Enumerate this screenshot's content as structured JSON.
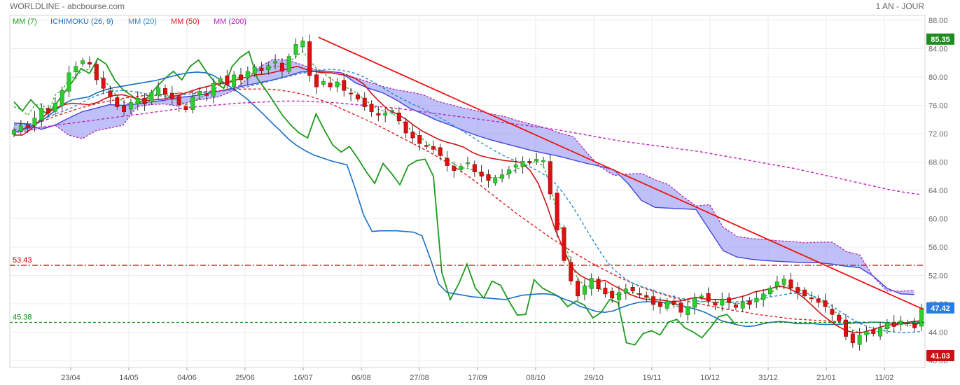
{
  "header": {
    "title": "WORLDLINE - abcbourse.com",
    "period": "1 AN - JOUR"
  },
  "indicators": [
    {
      "label": "MM (7)",
      "color": "#22a022"
    },
    {
      "label": "ICHIMOKU (26, 9)",
      "color": "#1a6fc4"
    },
    {
      "label": "MM (20)",
      "color": "#2a8ad6"
    },
    {
      "label": "MM (50)",
      "color": "#e02020"
    },
    {
      "label": "MM (200)",
      "color": "#c020c0"
    }
  ],
  "chart_data": {
    "type": "candlestick",
    "y_ticks": [
      "88.00",
      "84.00",
      "80.00",
      "76.00",
      "72.00",
      "68.00",
      "64.00",
      "60.00",
      "56.00",
      "52.00",
      "48.00",
      "44.00",
      "40.00"
    ],
    "ylim": [
      40,
      88
    ],
    "x_ticks": [
      "23/04",
      "14/05",
      "04/06",
      "25/06",
      "16/07",
      "06/08",
      "27/08",
      "17/09",
      "08/10",
      "29/10",
      "19/11",
      "10/12",
      "31/12",
      "21/01",
      "11/02"
    ],
    "price_badges": {
      "high": "85.35",
      "current": "47.42",
      "low": "41.03"
    },
    "level_lines": [
      {
        "label": "53.43",
        "value": 53.43,
        "color": "#cc0000",
        "style": "dashdot"
      },
      {
        "label": "45.38",
        "value": 45.38,
        "color": "#008800",
        "style": "dashed"
      }
    ],
    "trendline": {
      "from": [
        0,
        85.6
      ],
      "to": [
        1,
        47.2
      ],
      "color": "#ee1111"
    },
    "series": {
      "close": [
        72.5,
        73.1,
        72.8,
        74.2,
        75.6,
        74.9,
        76.3,
        78.1,
        80.6,
        81.5,
        82.3,
        81.8,
        79.6,
        78.4,
        77.2,
        75.8,
        75.1,
        76.4,
        77.0,
        76.2,
        77.8,
        78.5,
        77.6,
        76.9,
        76.1,
        75.4,
        77.2,
        78.0,
        77.4,
        79.1,
        79.8,
        78.9,
        80.3,
        79.6,
        80.8,
        81.4,
        80.9,
        81.6,
        82.2,
        80.8,
        82.9,
        84.6,
        85.1,
        80.2,
        78.6,
        79.4,
        78.6,
        79.3,
        78.1,
        77.6,
        76.9,
        75.8,
        75.1,
        74.6,
        74.9,
        75.3,
        73.8,
        72.1,
        71.4,
        70.6,
        70.2,
        69.8,
        68.9,
        67.5,
        66.8,
        67.4,
        67.9,
        66.6,
        66.0,
        65.4,
        65.8,
        66.2,
        66.9,
        67.6,
        68.1,
        67.9,
        68.4,
        68.2,
        63.5,
        58.4,
        54.1,
        51.2,
        49.1,
        50.5,
        51.6,
        50.1,
        49.4,
        48.8,
        49.6,
        50.1,
        49.8,
        49.3,
        48.9,
        47.9,
        47.6,
        48.4,
        47.9,
        46.8,
        47.6,
        48.8,
        49.1,
        48.4,
        47.8,
        48.6,
        48.2,
        47.5,
        48.3,
        47.9,
        48.8,
        49.4,
        50.2,
        51.1,
        51.5,
        50.2,
        49.6,
        49.1,
        48.7,
        48.2,
        47.6,
        46.5,
        45.6,
        43.4,
        42.5,
        43.6,
        44.1,
        43.8,
        44.6,
        45.3,
        44.8,
        45.6,
        45.2,
        44.6,
        47.4
      ],
      "mm7": [
        75.8,
        75.4,
        74.6,
        76.0,
        76.2,
        75.1,
        77.5,
        78.2,
        79.6,
        80.2,
        80.9,
        81.1,
        80.4,
        79.6,
        78.6,
        77.2,
        76.4,
        76.2,
        76.5,
        76.7,
        77.2,
        77.6,
        77.5,
        77.1,
        76.6,
        76.1,
        76.5,
        77.1,
        77.5,
        78.1,
        78.9,
        79.2,
        79.8,
        80.0,
        80.4,
        80.8,
        81.0,
        81.2,
        81.6,
        81.4,
        82.1,
        82.9,
        83.6,
        82.4,
        81.2,
        80.6,
        79.8,
        79.2,
        78.7,
        78.2,
        77.6,
        76.8,
        76.1,
        75.4,
        75.1,
        74.9,
        74.2,
        73.2,
        72.3,
        71.6,
        70.8,
        70.0,
        69.3,
        68.4,
        67.7,
        67.2,
        67.1,
        66.8,
        66.3,
        65.9,
        65.7,
        65.9,
        66.4,
        66.9,
        67.4,
        67.8,
        68.1,
        67.4,
        64.8,
        60.8,
        57.0,
        53.8,
        51.5,
        50.6,
        50.4,
        50.2,
        49.8,
        49.4,
        49.3,
        49.5,
        49.6,
        49.3,
        49.0,
        48.5,
        48.2,
        48.0,
        47.8,
        47.5,
        47.5,
        47.9,
        48.3,
        48.4,
        48.2,
        48.3,
        48.2,
        48.0,
        48.1,
        48.0,
        48.4,
        48.9,
        49.5,
        50.2,
        50.6,
        50.4,
        50.1,
        49.7,
        49.2,
        48.6,
        48.0,
        47.2,
        46.4,
        45.2,
        44.3,
        43.9,
        43.8,
        43.9,
        44.2,
        44.6,
        44.9,
        45.1,
        45.0,
        44.8,
        45.6
      ],
      "tenkan": [
        71.8,
        71.8,
        72.6,
        73.8,
        74.9,
        75.6,
        76.1,
        76.3,
        76.2,
        76.1,
        76.4,
        77.0,
        77.4,
        77.5,
        77.2,
        76.9,
        76.7,
        76.8,
        76.9,
        77.2,
        77.5,
        77.9,
        78.3,
        78.6,
        78.9,
        79.1,
        79.3,
        79.7,
        80.0,
        80.3,
        80.4,
        80.6,
        80.9,
        81.2,
        81.5,
        81.1,
        80.8,
        80.6,
        80.6,
        80.4,
        80.2,
        79.8,
        79.0,
        77.6,
        76.4,
        75.3,
        74.8,
        74.1,
        73.2,
        72.4,
        71.8,
        71.2,
        70.8,
        70.5,
        70.1,
        69.4,
        68.9,
        68.6,
        68.4,
        68.2,
        68.1,
        67.9,
        66.8,
        64.9,
        61.9,
        58.5,
        55.7,
        53.1,
        52.0,
        51.4,
        51.1,
        51.3,
        50.6,
        50.0,
        49.3,
        48.9,
        48.6,
        48.6,
        48.5,
        48.3,
        48.4,
        48.7,
        48.9,
        48.7,
        48.6,
        48.6,
        48.6,
        48.9,
        49.2,
        49.7,
        49.9,
        50.2,
        50.5,
        50.2,
        49.6,
        48.7,
        47.6,
        46.5,
        45.6,
        44.8,
        44.2,
        43.9,
        44.0,
        44.3,
        44.7,
        45.0,
        45.1,
        45.3,
        45.5,
        45.6
      ],
      "kijun": [
        72.2,
        72.5,
        73.0,
        73.6,
        74.4,
        75.3,
        76.2,
        76.8,
        77.0,
        77.2,
        77.8,
        78.2,
        78.5,
        78.7,
        78.9,
        79.1,
        79.3,
        79.5,
        79.8,
        80.1,
        80.4,
        80.6,
        80.7,
        80.6,
        80.2,
        79.4,
        78.6,
        77.8,
        76.9,
        75.8,
        74.7,
        73.5,
        72.4,
        71.2,
        70.3,
        69.6,
        69.0,
        68.6,
        68.2,
        67.9,
        67.6,
        64.2,
        60.5,
        58.2,
        58.3,
        58.3,
        58.3,
        58.2,
        58.1,
        57.6,
        54.4,
        50.8,
        49.6,
        49.4,
        49.2,
        49.0,
        48.9,
        48.8,
        48.7,
        48.6,
        48.9,
        49.2,
        49.3,
        49.4,
        49.4,
        49.2,
        48.7,
        48.3,
        47.6,
        47.3,
        46.9,
        46.8,
        47.0,
        47.5,
        47.9,
        48.2,
        48.3,
        48.3,
        48.2,
        48.1,
        47.8,
        47.5,
        47.2,
        46.8,
        46.2,
        45.6,
        45.3,
        45.0,
        44.8,
        44.9,
        45.2,
        45.4,
        45.5,
        45.4,
        45.2,
        45.2,
        45.2,
        45.1,
        45.1,
        45.1,
        45.2,
        45.3,
        45.3,
        45.4,
        45.4,
        45.3,
        45.2,
        45.2,
        45.3,
        45.3
      ],
      "mm20": [
        73.2,
        73.3,
        73.4,
        73.8,
        74.3,
        74.8,
        75.2,
        75.7,
        76.3,
        76.9,
        77.4,
        77.8,
        78.0,
        78.1,
        78.0,
        77.8,
        77.6,
        77.4,
        77.3,
        77.3,
        77.4,
        77.6,
        77.7,
        77.8,
        77.9,
        78.0,
        78.2,
        78.4,
        78.6,
        78.9,
        79.2,
        79.5,
        79.8,
        80.1,
        80.4,
        80.6,
        80.8,
        81.0,
        81.1,
        81.0,
        80.8,
        80.5,
        80.0,
        79.4,
        78.7,
        78.0,
        77.3,
        76.7,
        76.1,
        75.6,
        75.0,
        74.4,
        73.7,
        73.0,
        72.3,
        71.6,
        70.8,
        70.1,
        69.4,
        68.8,
        68.3,
        67.8,
        67.3,
        66.7,
        66.0,
        65.0,
        63.6,
        61.9,
        60.0,
        58.0,
        56.1,
        54.3,
        52.9,
        51.9,
        51.1,
        50.6,
        50.2,
        49.8,
        49.4,
        49.1,
        48.8,
        48.6,
        48.4,
        48.3,
        48.2,
        48.2,
        48.2,
        48.3,
        48.4,
        48.6,
        48.8,
        49.0,
        49.2,
        49.4,
        49.5,
        49.4,
        49.1,
        48.6,
        47.9,
        47.1,
        46.3,
        45.6,
        45.0,
        44.6,
        44.3,
        44.1,
        44.0,
        43.9,
        44.0,
        44.1
      ],
      "mm50": [
        72.2,
        72.8,
        73.4,
        74.0,
        74.6,
        75.1,
        75.6,
        76.0,
        76.4,
        76.7,
        77.0,
        77.2,
        77.4,
        77.5,
        77.6,
        77.7,
        77.8,
        77.9,
        78.0,
        78.1,
        78.2,
        78.3,
        78.3,
        78.3,
        78.2,
        78.0,
        77.7,
        77.3,
        76.8,
        76.2,
        75.5,
        74.8,
        74.1,
        73.4,
        72.6,
        71.8,
        71.0,
        70.2,
        69.4,
        68.5,
        67.6,
        66.6,
        65.5,
        64.3,
        63.1,
        61.9,
        60.7,
        59.6,
        58.5,
        57.4,
        56.4,
        55.4,
        54.5,
        53.6,
        52.8,
        52.0,
        51.3,
        50.6,
        50.0,
        49.5,
        49.0,
        48.6,
        48.2,
        47.9,
        47.6,
        47.3,
        47.0,
        46.8,
        46.5,
        46.3,
        46.1,
        45.9,
        45.8,
        45.7,
        45.6,
        45.5,
        45.4,
        45.4,
        45.4,
        45.4,
        45.3,
        45.3,
        45.2,
        45.2
      ],
      "mm200": [
        72.6,
        72.8,
        73.0,
        73.3,
        73.6,
        73.9,
        74.2,
        74.5,
        74.8,
        75.1,
        75.4,
        75.7,
        75.9,
        76.1,
        76.3,
        76.4,
        76.5,
        76.6,
        76.6,
        76.5,
        76.4,
        76.2,
        76.0,
        75.8,
        75.6,
        75.3,
        75.0,
        74.7,
        74.4,
        74.1,
        73.8,
        73.5,
        73.2,
        72.9,
        72.6,
        72.2,
        71.8,
        71.4,
        71.0,
        70.7,
        70.4,
        70.1,
        69.8,
        69.5,
        69.1,
        68.7,
        68.3,
        67.9,
        67.5,
        67.1,
        66.6,
        66.1,
        65.6,
        65.1,
        64.6,
        64.1,
        63.7,
        63.4
      ],
      "lagging": [
        76.5,
        75.2,
        76.8,
        75.5,
        74.8,
        76.2,
        77.8,
        79.4,
        81.2,
        80.5,
        82.6,
        81.8,
        79.6,
        78.2,
        77.4,
        76.4,
        77.2,
        78.6,
        79.8,
        80.8,
        79.6,
        81.5,
        82.4,
        80.6,
        79.2,
        78.4,
        81.5,
        82.8,
        83.6,
        79.8,
        78.2,
        76.4,
        74.6,
        73.2,
        72.1,
        71.4,
        74.8,
        72.5,
        70.4,
        69.4,
        70.2,
        68.5,
        66.6,
        65.0,
        67.8,
        66.4,
        64.8,
        67.5,
        68.2,
        68.4,
        66.0,
        52.4,
        48.6,
        50.8,
        53.6,
        50.2,
        48.8,
        51.2,
        50.6,
        48.4,
        46.4,
        46.5,
        51.4,
        50.2,
        49.6,
        49.0,
        47.6,
        48.4,
        47.8,
        46.0,
        46.8,
        48.6,
        48.2,
        42.5,
        42.2,
        43.8,
        44.2,
        43.6,
        45.4,
        45.8,
        44.6,
        44.0,
        43.2,
        44.6,
        46.2,
        46.5,
        45.1
      ],
      "cloud_a": [
        73.5,
        73.4,
        72.6,
        73.2,
        74.2,
        75.1,
        75.6,
        76.1,
        76.0,
        76.2,
        76.5,
        76.7,
        77.1,
        77.3,
        77.6,
        78.0,
        78.4,
        78.8,
        79.2,
        79.6,
        80.1,
        80.7,
        80.8,
        80.8,
        80.6,
        79.2,
        78.4,
        77.8,
        76.8,
        75.6,
        74.8,
        73.9,
        73.2,
        72.4,
        71.7,
        71.1,
        70.6,
        70.1,
        69.6,
        69.2,
        68.8,
        68.3,
        67.8,
        67.4,
        66.9,
        65.0,
        62.6,
        61.6,
        61.5,
        61.4,
        61.3,
        58.4,
        55.5,
        54.6,
        54.3,
        54.1,
        54.0,
        53.9,
        53.8,
        53.8,
        53.6,
        53.3,
        53.1,
        51.9,
        50.2,
        49.4,
        49.3
      ],
      "cloud_b": [
        72.1,
        72.4,
        72.8,
        73.2,
        71.8,
        71.3,
        72.4,
        72.8,
        73.2,
        75.8,
        76.1,
        76.2,
        75.9,
        76.6,
        76.9,
        77.2,
        78.0,
        79.6,
        81.4,
        82.5,
        82.4,
        81.8,
        81.1,
        80.8,
        80.6,
        79.9,
        79.3,
        78.7,
        78.2,
        77.9,
        77.5,
        76.6,
        76.1,
        75.6,
        75.2,
        74.8,
        74.4,
        73.8,
        73.3,
        72.8,
        72.1,
        71.6,
        69.3,
        67.3,
        66.1,
        66.3,
        66.4,
        65.5,
        64.8,
        63.2,
        61.8,
        62.0,
        58.8,
        57.5,
        57.2,
        57.1,
        56.9,
        56.8,
        56.6,
        56.7,
        56.7,
        55.4,
        54.9,
        51.8,
        49.8,
        49.8,
        49.9
      ]
    }
  }
}
